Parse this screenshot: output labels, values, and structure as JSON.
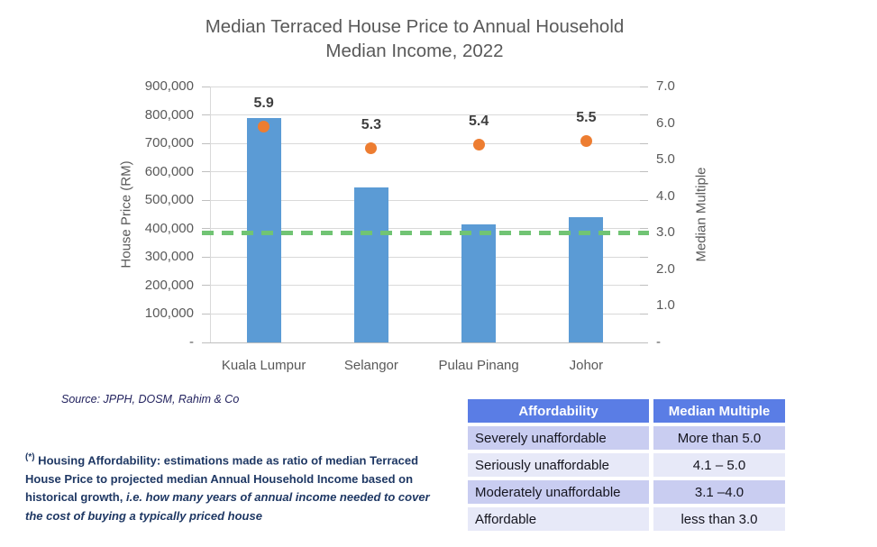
{
  "title": {
    "line1": "Median Terraced House Price to Annual Household",
    "line2": "Median Income, 2022"
  },
  "chart_data": {
    "type": "bar",
    "categories": [
      "Kuala Lumpur",
      "Selangor",
      "Pulau Pinang",
      "Johor"
    ],
    "series": [
      {
        "name": "House Price (RM)",
        "type": "bar",
        "values": [
          790000,
          545000,
          415000,
          440000
        ],
        "color": "#5B9BD5"
      },
      {
        "name": "Median Multiple",
        "type": "scatter",
        "values": [
          5.9,
          5.3,
          5.4,
          5.5
        ],
        "color": "#ED7D31"
      }
    ],
    "point_labels": [
      "5.9",
      "5.3",
      "5.4",
      "5.5"
    ],
    "left_axis": {
      "label": "House Price (RM)",
      "min": 0,
      "max": 900000,
      "ticks": [
        "900,000",
        "800,000",
        "700,000",
        "600,000",
        "500,000",
        "400,000",
        "300,000",
        "200,000",
        "100,000",
        "-"
      ]
    },
    "right_axis": {
      "label": "Median Multiple",
      "min": 0,
      "max": 7,
      "ticks": [
        "7.0",
        "6.0",
        "5.0",
        "4.0",
        "3.0",
        "2.0",
        "1.0",
        "-"
      ]
    },
    "reference_line": {
      "value": 3.0,
      "color": "#71C474",
      "style": "dashed"
    },
    "grid": true,
    "legend": "none"
  },
  "source": "Source: JPPH, DOSM, Rahim & Co",
  "footnote": {
    "marker": "(*)",
    "bold_text": " Housing Affordability: estimations made as ratio of median Terraced House Price to projected median Annual Household Income based on historical growth, ",
    "italic_text": " i.e. how many years of annual income needed to cover the cost of buying a typically priced house"
  },
  "table": {
    "headers": [
      "Affordability",
      "Median Multiple"
    ],
    "rows": [
      [
        "Severely unaffordable",
        "More than 5.0"
      ],
      [
        "Seriously unaffordable",
        "4.1 – 5.0"
      ],
      [
        "Moderately unaffordable",
        "3.1 –4.0"
      ],
      [
        "Affordable",
        "less than 3.0"
      ]
    ]
  },
  "colors": {
    "bar": "#5B9BD5",
    "point": "#ED7D31",
    "reference_line": "#71C474",
    "title_text": "#595959",
    "note_text": "#1F3864",
    "table_header_bg": "#5A7DE5",
    "table_row_odd_bg": "#C9CDF1",
    "table_row_even_bg": "#E7E9F8"
  }
}
